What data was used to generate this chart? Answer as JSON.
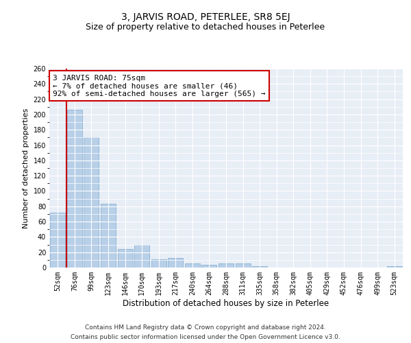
{
  "title": "3, JARVIS ROAD, PETERLEE, SR8 5EJ",
  "subtitle": "Size of property relative to detached houses in Peterlee",
  "xlabel": "Distribution of detached houses by size in Peterlee",
  "ylabel": "Number of detached properties",
  "categories": [
    "52sqm",
    "76sqm",
    "99sqm",
    "123sqm",
    "146sqm",
    "170sqm",
    "193sqm",
    "217sqm",
    "240sqm",
    "264sqm",
    "288sqm",
    "311sqm",
    "335sqm",
    "358sqm",
    "382sqm",
    "405sqm",
    "429sqm",
    "452sqm",
    "476sqm",
    "499sqm",
    "523sqm"
  ],
  "values": [
    72,
    206,
    170,
    83,
    24,
    30,
    11,
    13,
    5,
    4,
    5,
    5,
    2,
    0,
    0,
    0,
    0,
    0,
    0,
    0,
    2
  ],
  "bar_color": "#b8cfe8",
  "bar_edge_color": "#7aa8cc",
  "bg_color": "#e8eef6",
  "grid_color": "#ffffff",
  "vline_color": "#cc0000",
  "annotation_text": "3 JARVIS ROAD: 75sqm\n← 7% of detached houses are smaller (46)\n92% of semi-detached houses are larger (565) →",
  "annotation_box_color": "#cc0000",
  "ylim": [
    0,
    260
  ],
  "yticks": [
    0,
    20,
    40,
    60,
    80,
    100,
    120,
    140,
    160,
    180,
    200,
    220,
    240,
    260
  ],
  "footer_line1": "Contains HM Land Registry data © Crown copyright and database right 2024.",
  "footer_line2": "Contains public sector information licensed under the Open Government Licence v3.0.",
  "title_fontsize": 10,
  "subtitle_fontsize": 9,
  "xlabel_fontsize": 8.5,
  "ylabel_fontsize": 8,
  "tick_fontsize": 7,
  "annotation_fontsize": 8,
  "footer_fontsize": 6.5
}
